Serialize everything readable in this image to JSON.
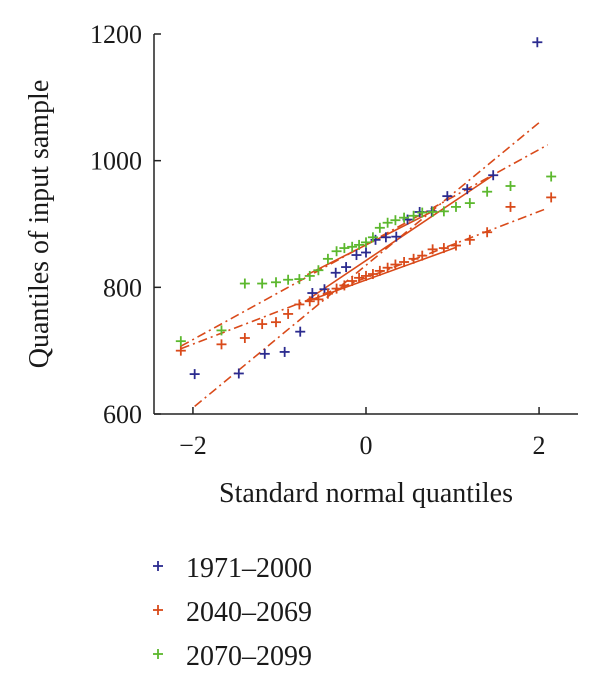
{
  "chart_data": {
    "type": "scatter",
    "title": "",
    "xlabel": "Standard normal quantiles",
    "ylabel": "Quantiles of input sample",
    "xlim": [
      -2.45,
      2.45
    ],
    "ylim": [
      600,
      1200
    ],
    "xticks": [
      -2,
      0,
      2
    ],
    "yticks": [
      600,
      800,
      1000,
      1200
    ],
    "xtick_labels": [
      "−2",
      "0",
      "2"
    ],
    "ytick_labels": [
      "600",
      "800",
      "1000",
      "1200"
    ],
    "grid": false,
    "legend": "bottom-left",
    "marker": "+",
    "series": [
      {
        "name": "1971–2000",
        "color": "#2b2b8f",
        "points": [
          [
            -1.98,
            663
          ],
          [
            -1.47,
            664
          ],
          [
            -1.17,
            695
          ],
          [
            -0.94,
            698
          ],
          [
            -0.76,
            730
          ],
          [
            -0.62,
            791
          ],
          [
            -0.48,
            797
          ],
          [
            -0.35,
            823
          ],
          [
            -0.23,
            832
          ],
          [
            -0.11,
            851
          ],
          [
            0.0,
            855
          ],
          [
            0.11,
            875
          ],
          [
            0.23,
            879
          ],
          [
            0.35,
            880
          ],
          [
            0.48,
            907
          ],
          [
            0.62,
            919
          ],
          [
            0.76,
            920
          ],
          [
            0.94,
            944
          ],
          [
            1.17,
            955
          ],
          [
            1.47,
            977
          ],
          [
            1.98,
            1187
          ]
        ],
        "fit_line": [
          [
            -0.68,
            780
          ],
          [
            1.47,
            977
          ]
        ],
        "fit_ext_line": [
          [
            -1.98,
            612
          ],
          [
            2.0,
            1060
          ]
        ]
      },
      {
        "name": "2040–2069",
        "color": "#d94a1a",
        "points": [
          [
            -2.14,
            700
          ],
          [
            -1.67,
            710
          ],
          [
            -1.4,
            720
          ],
          [
            -1.2,
            742
          ],
          [
            -1.04,
            745
          ],
          [
            -0.9,
            758
          ],
          [
            -0.77,
            773
          ],
          [
            -0.65,
            778
          ],
          [
            -0.55,
            781
          ],
          [
            -0.44,
            790
          ],
          [
            -0.34,
            798
          ],
          [
            -0.25,
            803
          ],
          [
            -0.16,
            810
          ],
          [
            -0.08,
            815
          ],
          [
            0.0,
            818
          ],
          [
            0.08,
            821
          ],
          [
            0.16,
            826
          ],
          [
            0.25,
            831
          ],
          [
            0.34,
            836
          ],
          [
            0.44,
            840
          ],
          [
            0.55,
            845
          ],
          [
            0.65,
            850
          ],
          [
            0.77,
            860
          ],
          [
            0.9,
            862
          ],
          [
            1.04,
            866
          ],
          [
            1.2,
            875
          ],
          [
            1.4,
            887
          ],
          [
            1.67,
            927
          ],
          [
            2.14,
            942
          ]
        ],
        "fit_line": [
          [
            -0.68,
            778
          ],
          [
            1.04,
            863
          ]
        ],
        "fit_ext_line": [
          [
            -2.14,
            703
          ],
          [
            2.1,
            925
          ]
        ]
      },
      {
        "name": "2070–2099",
        "color": "#5cb82e",
        "points": [
          [
            -2.14,
            715
          ],
          [
            -1.67,
            732
          ],
          [
            -1.4,
            806
          ],
          [
            -1.2,
            806
          ],
          [
            -1.04,
            808
          ],
          [
            -0.9,
            812
          ],
          [
            -0.77,
            813
          ],
          [
            -0.65,
            818
          ],
          [
            -0.55,
            827
          ],
          [
            -0.44,
            845
          ],
          [
            -0.34,
            857
          ],
          [
            -0.25,
            862
          ],
          [
            -0.16,
            864
          ],
          [
            -0.08,
            867
          ],
          [
            0.0,
            871
          ],
          [
            0.08,
            879
          ],
          [
            0.16,
            894
          ],
          [
            0.25,
            902
          ],
          [
            0.34,
            906
          ],
          [
            0.44,
            910
          ],
          [
            0.55,
            913
          ],
          [
            0.65,
            918
          ],
          [
            0.77,
            919
          ],
          [
            0.9,
            920
          ],
          [
            1.04,
            927
          ],
          [
            1.2,
            933
          ],
          [
            1.4,
            951
          ],
          [
            1.67,
            960
          ],
          [
            2.14,
            975
          ]
        ],
        "fit_line": [
          [
            -0.68,
            820
          ],
          [
            0.8,
            922
          ]
        ],
        "fit_ext_line": [
          [
            -2.14,
            707
          ],
          [
            2.1,
            1025
          ]
        ]
      }
    ]
  }
}
